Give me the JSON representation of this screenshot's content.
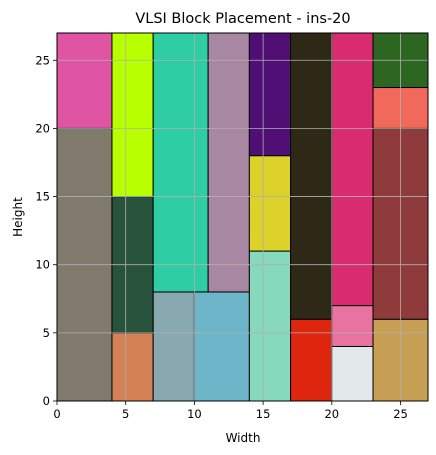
{
  "chart_data": {
    "type": "rectangles",
    "title": "VLSI Block Placement - ins-20",
    "xlabel": "Width",
    "ylabel": "Height",
    "xlim": [
      0,
      27
    ],
    "ylim": [
      0,
      27
    ],
    "xticks": [
      0,
      5,
      10,
      15,
      20,
      25
    ],
    "yticks": [
      0,
      5,
      10,
      15,
      20,
      25
    ],
    "grid": true,
    "blocks": [
      {
        "x": 0,
        "y": 0,
        "w": 4,
        "h": 20,
        "color": "#7f7a6b"
      },
      {
        "x": 0,
        "y": 20,
        "w": 4,
        "h": 7,
        "color": "#e055a3"
      },
      {
        "x": 4,
        "y": 0,
        "w": 3,
        "h": 5,
        "color": "#d48156"
      },
      {
        "x": 4,
        "y": 5,
        "w": 3,
        "h": 10,
        "color": "#27533c"
      },
      {
        "x": 4,
        "y": 15,
        "w": 3,
        "h": 12,
        "color": "#b8ff00"
      },
      {
        "x": 7,
        "y": 0,
        "w": 3,
        "h": 8,
        "color": "#88a9b0"
      },
      {
        "x": 7,
        "y": 8,
        "w": 4,
        "h": 19,
        "color": "#2fcda3"
      },
      {
        "x": 10,
        "y": 0,
        "w": 4,
        "h": 8,
        "color": "#6db5c8"
      },
      {
        "x": 11,
        "y": 8,
        "w": 3,
        "h": 19,
        "color": "#a887a3"
      },
      {
        "x": 14,
        "y": 0,
        "w": 3,
        "h": 11,
        "color": "#86d9bd"
      },
      {
        "x": 14,
        "y": 11,
        "w": 3,
        "h": 7,
        "color": "#dcd22a"
      },
      {
        "x": 14,
        "y": 18,
        "w": 3,
        "h": 9,
        "color": "#500f75"
      },
      {
        "x": 17,
        "y": 0,
        "w": 3,
        "h": 6,
        "color": "#de250d"
      },
      {
        "x": 17,
        "y": 6,
        "w": 3,
        "h": 21,
        "color": "#2e2816"
      },
      {
        "x": 20,
        "y": 0,
        "w": 3,
        "h": 4,
        "color": "#e3e9ea"
      },
      {
        "x": 20,
        "y": 4,
        "w": 3,
        "h": 3,
        "color": "#e873a0"
      },
      {
        "x": 20,
        "y": 7,
        "w": 3,
        "h": 20,
        "color": "#d92c6e"
      },
      {
        "x": 23,
        "y": 0,
        "w": 4,
        "h": 6,
        "color": "#c79f55"
      },
      {
        "x": 23,
        "y": 6,
        "w": 4,
        "h": 14,
        "color": "#8f3b3b"
      },
      {
        "x": 23,
        "y": 20,
        "w": 4,
        "h": 3,
        "color": "#f0695a"
      },
      {
        "x": 23,
        "y": 23,
        "w": 4,
        "h": 4,
        "color": "#2d6621"
      }
    ]
  }
}
